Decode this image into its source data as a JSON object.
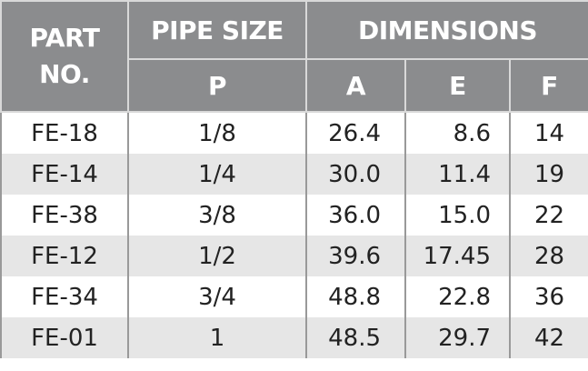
{
  "table": {
    "header": {
      "part": "PART\nNO.",
      "pipe_size": "PIPE SIZE",
      "dimensions": "DIMENSIONS",
      "p": "P",
      "a": "A",
      "e": "E",
      "f": "F"
    },
    "rows": [
      [
        "FE-18",
        "1/8",
        "26.4",
        "8.6",
        "14"
      ],
      [
        "FE-14",
        "1/4",
        "30.0",
        "11.4",
        "19"
      ],
      [
        "FE-38",
        "3/8",
        "36.0",
        "15.0",
        "22"
      ],
      [
        "FE-12",
        "1/2",
        "39.6",
        "17.45",
        "28"
      ],
      [
        "FE-34",
        "3/4",
        "48.8",
        "22.8",
        "36"
      ],
      [
        "FE-01",
        "1",
        "48.5",
        "29.7",
        "42"
      ]
    ]
  }
}
